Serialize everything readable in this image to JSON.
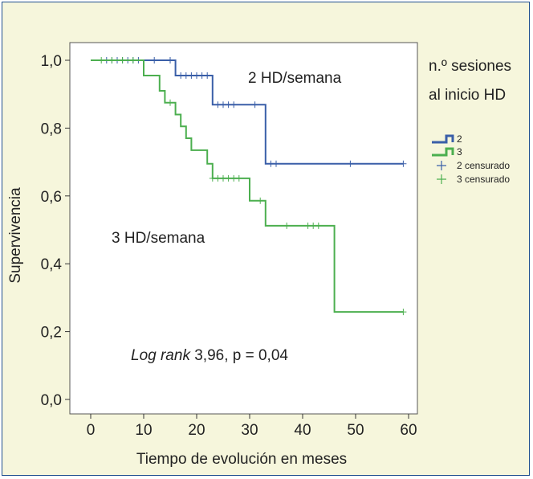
{
  "chart_data": {
    "type": "line",
    "title": "",
    "xlabel": "Tiempo de evolución en meses",
    "ylabel": "Supervivencia",
    "xlim": [
      0,
      60
    ],
    "ylim": [
      0,
      1
    ],
    "x_ticks": [
      "0",
      "10",
      "20",
      "30",
      "40",
      "50",
      "60"
    ],
    "y_ticks": [
      "0,0",
      "0,2",
      "0,4",
      "0,6",
      "0,8",
      "1,0"
    ],
    "x_tick_values": [
      0,
      10,
      20,
      30,
      40,
      50,
      60
    ],
    "y_tick_values": [
      0,
      0.2,
      0.4,
      0.6,
      0.8,
      1.0
    ],
    "grid": false,
    "legend_title_line1": "n.º sesiones",
    "legend_title_line2": "al inicio HD",
    "legend_placement": "right",
    "legend": [
      "2",
      "3",
      "2 censurado",
      "3 censurado"
    ],
    "annotations": {
      "label_2": "2 HD/semana",
      "label_3": "3 HD/semana",
      "logrank_italic": "Log rank",
      "logrank_rest": " 3,96, p = 0,04"
    },
    "series": [
      {
        "name": "2",
        "color": "#3a5fa8",
        "steps": [
          [
            0,
            1.0
          ],
          [
            16,
            0.955
          ],
          [
            23,
            0.869
          ],
          [
            33,
            0.695
          ],
          [
            59,
            0.695
          ]
        ],
        "censored": [
          [
            3,
            1.0
          ],
          [
            4,
            1.0
          ],
          [
            5,
            1.0
          ],
          [
            6,
            1.0
          ],
          [
            7,
            1.0
          ],
          [
            8,
            1.0
          ],
          [
            9,
            1.0
          ],
          [
            12,
            1.0
          ],
          [
            15,
            1.0
          ],
          [
            17,
            0.955
          ],
          [
            18,
            0.955
          ],
          [
            19,
            0.955
          ],
          [
            20,
            0.955
          ],
          [
            21,
            0.955
          ],
          [
            22,
            0.955
          ],
          [
            24,
            0.869
          ],
          [
            25,
            0.869
          ],
          [
            26,
            0.869
          ],
          [
            27,
            0.869
          ],
          [
            31,
            0.869
          ],
          [
            34,
            0.695
          ],
          [
            35,
            0.695
          ],
          [
            49,
            0.695
          ],
          [
            59,
            0.695
          ]
        ]
      },
      {
        "name": "3",
        "color": "#4caf4f",
        "steps": [
          [
            0,
            1.0
          ],
          [
            10,
            0.955
          ],
          [
            13,
            0.91
          ],
          [
            14,
            0.875
          ],
          [
            16,
            0.84
          ],
          [
            17,
            0.805
          ],
          [
            18,
            0.77
          ],
          [
            19,
            0.735
          ],
          [
            21,
            0.735
          ],
          [
            22,
            0.695
          ],
          [
            23,
            0.652
          ],
          [
            30,
            0.586
          ],
          [
            33,
            0.512
          ],
          [
            46,
            0.258
          ],
          [
            59,
            0.258
          ]
        ],
        "censored": [
          [
            2,
            1.0
          ],
          [
            4,
            1.0
          ],
          [
            6,
            1.0
          ],
          [
            8,
            1.0
          ],
          [
            15,
            0.875
          ],
          [
            23,
            0.652
          ],
          [
            24,
            0.652
          ],
          [
            25,
            0.652
          ],
          [
            26,
            0.652
          ],
          [
            27,
            0.652
          ],
          [
            28,
            0.652
          ],
          [
            32,
            0.586
          ],
          [
            37,
            0.512
          ],
          [
            41,
            0.512
          ],
          [
            42,
            0.512
          ],
          [
            43,
            0.512
          ],
          [
            59,
            0.258
          ]
        ]
      }
    ]
  }
}
